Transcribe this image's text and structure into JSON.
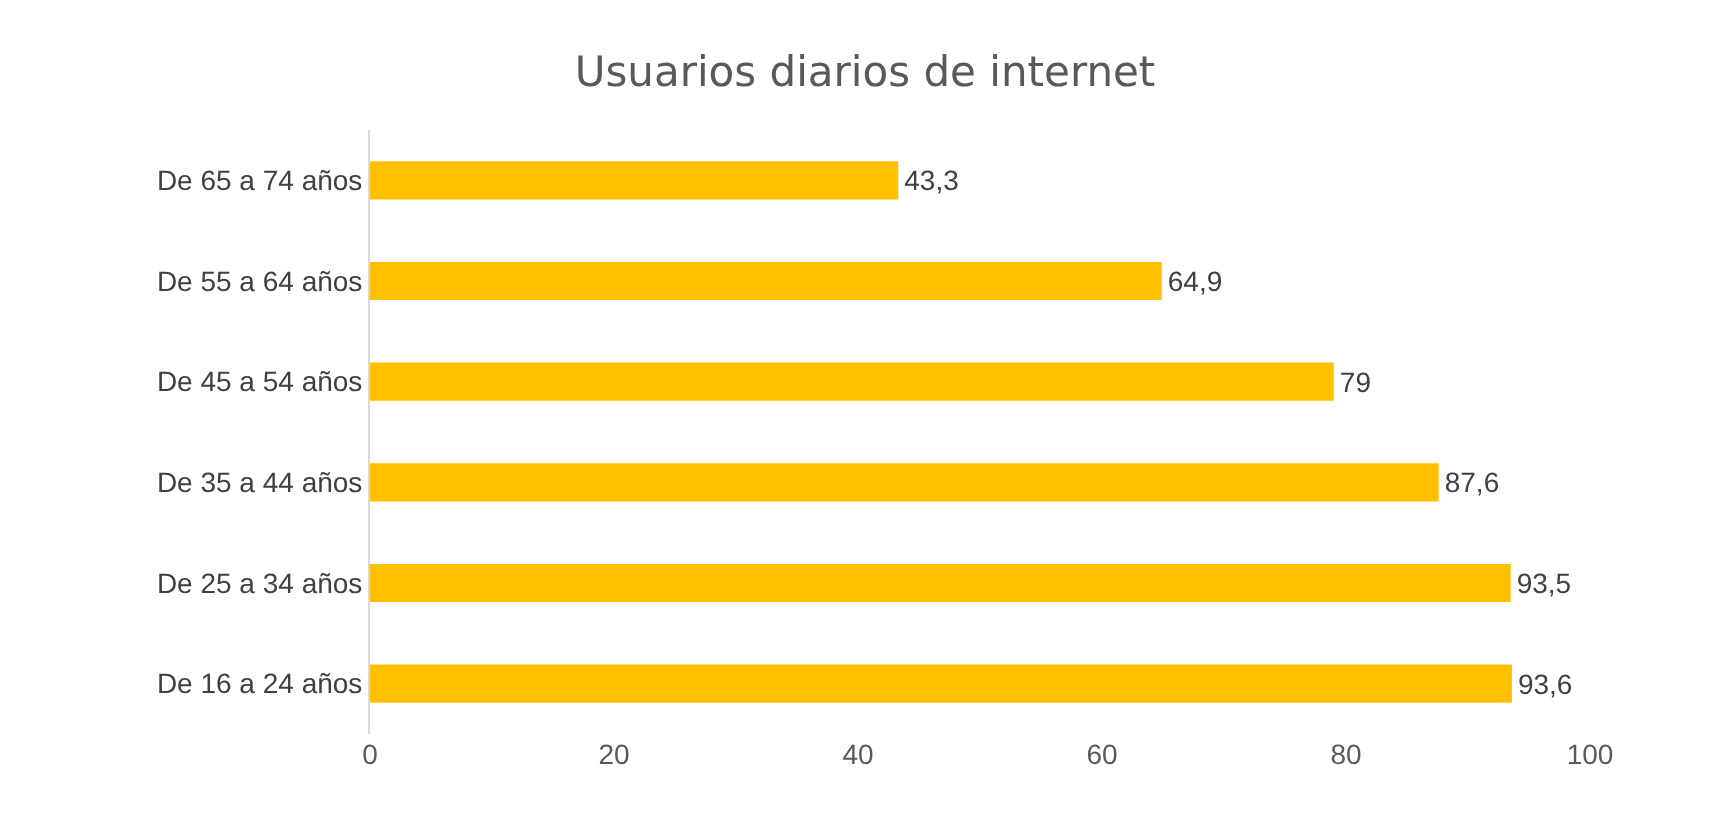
{
  "chart_data": {
    "type": "bar",
    "orientation": "horizontal",
    "title": "Usuarios diarios de internet",
    "categories": [
      "De 65 a 74 años",
      "De 55 a 64 años",
      "De 45 a 54 años",
      "De 35 a 44 años",
      "De 25 a 34 años",
      "De 16 a 24 años"
    ],
    "values": [
      43.3,
      64.9,
      79,
      87.6,
      93.5,
      93.6
    ],
    "value_labels": [
      "43,3",
      "64,9",
      "79",
      "87,6",
      "93,5",
      "93,6"
    ],
    "color": "#ffc000",
    "xlim": [
      0,
      100
    ],
    "xticks": [
      0,
      20,
      40,
      60,
      80,
      100
    ],
    "grid": false
  }
}
